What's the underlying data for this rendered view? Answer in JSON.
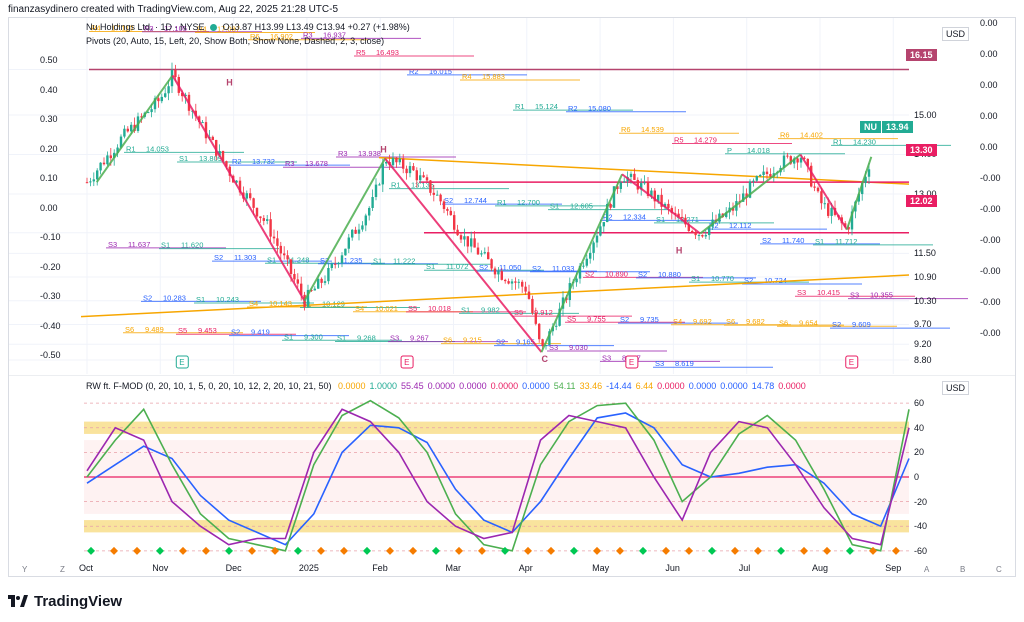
{
  "header": {
    "creator_line": "finanzasydinero created with TradingView.com, Aug 22, 2025 21:28 UTC-5"
  },
  "symbol_line": {
    "name": "Nu Holdings Ltd. · 1D · NYSE",
    "ohlc": "O13.87 H13.99 L13.49 C13.94 +0.27 (+1.98%)"
  },
  "pivots_line": "Pivots (20, Auto, 15, Left, 20, Show Both, Show None, Dashed, 2, 3, close)",
  "price_scale": {
    "unit_label": "USD",
    "ticks": [
      "16.15",
      "15.00",
      "14.00",
      "13.00",
      "12.02",
      "11.50",
      "10.90",
      "10.30",
      "9.70",
      "9.20",
      "8.80"
    ],
    "last_price": "13.94",
    "last_price_label": "NU",
    "tag_1330": "13.30",
    "tag_1615": "16.15",
    "tag_1202": "12.02"
  },
  "left_scale": [
    "0.50",
    "0.40",
    "0.30",
    "0.20",
    "0.10",
    "0.00",
    "-0.10",
    "-0.20",
    "-0.30",
    "-0.40",
    "-0.50"
  ],
  "far_right_scale": [
    "0.00",
    "0.00",
    "0.00",
    "0.00",
    "0.00",
    "-0.00",
    "-0.00",
    "-0.00",
    "-0.00",
    "-0.00",
    "-0.00"
  ],
  "x_axis": {
    "months": [
      "Oct",
      "Nov",
      "Dec",
      "2025",
      "Feb",
      "Mar",
      "Apr",
      "May",
      "Jun",
      "Jul",
      "Aug",
      "Sep"
    ]
  },
  "pattern_labels": [
    "H",
    "H",
    "C",
    "H"
  ],
  "event_markers": [
    "E",
    "E",
    "E",
    "E"
  ],
  "oscillator": {
    "legend_title": "RW ft. F-MOD (0, 20, 10, 1, 5, 0, 20, 10, 12, 2, 20, 10, 21, 50)",
    "legend_values": [
      {
        "v": "0.0000",
        "color": "#f7a600"
      },
      {
        "v": "1.0000",
        "color": "#22ab94"
      },
      {
        "v": "55.45",
        "color": "#9c27b0"
      },
      {
        "v": "0.0000",
        "color": "#9c27b0"
      },
      {
        "v": "0.0000",
        "color": "#9c27b0"
      },
      {
        "v": "0.0000",
        "color": "#e91e63"
      },
      {
        "v": "0.0000",
        "color": "#2962ff"
      },
      {
        "v": "54.11",
        "color": "#4caf50"
      },
      {
        "v": "33.46",
        "color": "#f7a600"
      },
      {
        "v": "-14.44",
        "color": "#2962ff"
      },
      {
        "v": "6.44",
        "color": "#f7a600"
      },
      {
        "v": "0.0000",
        "color": "#e91e63"
      },
      {
        "v": "0.0000",
        "color": "#2962ff"
      },
      {
        "v": "0.0000",
        "color": "#2962ff"
      },
      {
        "v": "14.78",
        "color": "#2962ff"
      },
      {
        "v": "0.0000",
        "color": "#e91e63"
      }
    ],
    "unit_label": "USD",
    "ticks": [
      "60",
      "40",
      "20",
      "0",
      "-20",
      "-40",
      "-60"
    ]
  },
  "pivot_levels": [
    {
      "label": "R4",
      "value": "17.110",
      "color": "#f7a600"
    },
    {
      "label": "R3",
      "value": "17.105",
      "color": "#9c27b0"
    },
    {
      "label": "R4",
      "value": "17.087",
      "color": "#f7a600"
    },
    {
      "label": "R6",
      "value": "16.902",
      "color": "#f7a600"
    },
    {
      "label": "R3",
      "value": "16.937",
      "color": "#9c27b0"
    },
    {
      "label": "R5",
      "value": "16.493",
      "color": "#e91e63"
    },
    {
      "label": "R2",
      "value": "16.015",
      "color": "#2962ff"
    },
    {
      "label": "R4",
      "value": "15.883",
      "color": "#f7a600"
    },
    {
      "label": "R1",
      "value": "15.124",
      "color": "#22ab94"
    },
    {
      "label": "R2",
      "value": "15.080",
      "color": "#2962ff"
    },
    {
      "label": "R6",
      "value": "14.539",
      "color": "#f7a600"
    },
    {
      "label": "R5",
      "value": "14.279",
      "color": "#e91e63"
    },
    {
      "label": "P",
      "value": "14.018",
      "color": "#22ab94"
    },
    {
      "label": "R6",
      "value": "14.402",
      "color": "#f7a600"
    },
    {
      "label": "R1",
      "value": "14.230",
      "color": "#22ab94"
    },
    {
      "label": "R1",
      "value": "14.053",
      "color": "#22ab94"
    },
    {
      "label": "S1",
      "value": "13.809",
      "color": "#22ab94"
    },
    {
      "label": "R2",
      "value": "13.732",
      "color": "#2962ff"
    },
    {
      "label": "R3",
      "value": "13.678",
      "color": "#9c27b0"
    },
    {
      "label": "R3",
      "value": "13.938",
      "color": "#9c27b0"
    },
    {
      "label": "R1",
      "value": "13.135",
      "color": "#22ab94"
    },
    {
      "label": "S2",
      "value": "12.744",
      "color": "#2962ff"
    },
    {
      "label": "R1",
      "value": "12.700",
      "color": "#22ab94"
    },
    {
      "label": "S1",
      "value": "12.605",
      "color": "#22ab94"
    },
    {
      "label": "R2",
      "value": "12.334",
      "color": "#2962ff"
    },
    {
      "label": "S1",
      "value": "12.271",
      "color": "#22ab94"
    },
    {
      "label": "R2",
      "value": "12.112",
      "color": "#2962ff"
    },
    {
      "label": "S2",
      "value": "11.740",
      "color": "#2962ff"
    },
    {
      "label": "S1",
      "value": "11.712",
      "color": "#22ab94"
    },
    {
      "label": "S3",
      "value": "11.637",
      "color": "#9c27b0"
    },
    {
      "label": "S1",
      "value": "11.620",
      "color": "#22ab94"
    },
    {
      "label": "S2",
      "value": "11.303",
      "color": "#2962ff"
    },
    {
      "label": "S1",
      "value": "11.248",
      "color": "#22ab94"
    },
    {
      "label": "S2",
      "value": "11.235",
      "color": "#2962ff"
    },
    {
      "label": "S1",
      "value": "11.222",
      "color": "#22ab94"
    },
    {
      "label": "S1",
      "value": "11.072",
      "color": "#22ab94"
    },
    {
      "label": "S2",
      "value": "11.050",
      "color": "#2962ff"
    },
    {
      "label": "S2",
      "value": "11.033",
      "color": "#2962ff"
    },
    {
      "label": "S2",
      "value": "10.890",
      "color": "#e91e63"
    },
    {
      "label": "S2",
      "value": "10.880",
      "color": "#2962ff"
    },
    {
      "label": "S1",
      "value": "10.770",
      "color": "#22ab94"
    },
    {
      "label": "S2",
      "value": "10.724",
      "color": "#2962ff"
    },
    {
      "label": "S3",
      "value": "10.415",
      "color": "#e91e63"
    },
    {
      "label": "S3",
      "value": "10.355",
      "color": "#9c27b0"
    },
    {
      "label": "S2",
      "value": "10.283",
      "color": "#2962ff"
    },
    {
      "label": "S1",
      "value": "10.243",
      "color": "#22ab94"
    },
    {
      "label": "S4",
      "value": "10.143",
      "color": "#f7a600"
    },
    {
      "label": "S1",
      "value": "10.129",
      "color": "#22ab94"
    },
    {
      "label": "S4",
      "value": "10.021",
      "color": "#f7a600"
    },
    {
      "label": "S5",
      "value": "10.018",
      "color": "#e91e63"
    },
    {
      "label": "S1",
      "value": "9.982",
      "color": "#22ab94"
    },
    {
      "label": "S5",
      "value": "9.912",
      "color": "#e91e63"
    },
    {
      "label": "S5",
      "value": "9.755",
      "color": "#e91e63"
    },
    {
      "label": "S2",
      "value": "9.735",
      "color": "#2962ff"
    },
    {
      "label": "S4",
      "value": "9.692",
      "color": "#f7a600"
    },
    {
      "label": "S6",
      "value": "9.682",
      "color": "#f7a600"
    },
    {
      "label": "S6",
      "value": "9.654",
      "color": "#f7a600"
    },
    {
      "label": "S2",
      "value": "9.609",
      "color": "#2962ff"
    },
    {
      "label": "S6",
      "value": "9.489",
      "color": "#f7a600"
    },
    {
      "label": "S5",
      "value": "9.453",
      "color": "#e91e63"
    },
    {
      "label": "S2",
      "value": "9.419",
      "color": "#2962ff"
    },
    {
      "label": "S1",
      "value": "9.300",
      "color": "#22ab94"
    },
    {
      "label": "S1",
      "value": "9.268",
      "color": "#22ab94"
    },
    {
      "label": "S3",
      "value": "9.267",
      "color": "#9c27b0"
    },
    {
      "label": "S6",
      "value": "9.215",
      "color": "#f7a600"
    },
    {
      "label": "S2",
      "value": "9.165",
      "color": "#2962ff"
    },
    {
      "label": "S3",
      "value": "9.030",
      "color": "#9c27b0"
    },
    {
      "label": "S3",
      "value": "8.767",
      "color": "#9c27b0"
    },
    {
      "label": "S3",
      "value": "8.619",
      "color": "#2962ff"
    }
  ],
  "chart_data": [
    {
      "type": "line",
      "title": "",
      "xlabel": "",
      "ylabel": "",
      "x": [
        "Oct",
        "Nov",
        "Dec",
        "2025",
        "Feb",
        "Mar",
        "Apr",
        "May",
        "Jun",
        "Jul",
        "Aug",
        "Sep"
      ],
      "ylim": [
        8.7,
        17.2
      ],
      "grid": true,
      "series": [
        {
          "name": "",
          "x": [
            "Oct 1",
            "Oct 15",
            "Nov 1",
            "Nov 6",
            "Nov 20",
            "Dec 1",
            "Dec 15",
            "Dec 30",
            "Jan 10",
            "Jan 28",
            "Feb 3",
            "Feb 14",
            "Feb 25",
            "Mar 5",
            "Mar 20",
            "Apr 1",
            "Apr 7",
            "Apr 20",
            "May 1",
            "May 10",
            "May 20",
            "Jun 2",
            "Jun 12",
            "Jun 25",
            "Jul 3",
            "Jul 15",
            "Jul 23",
            "Aug 1",
            "Aug 12",
            "Aug 22"
          ],
          "values": [
            13.3,
            14.4,
            15.4,
            16.0,
            14.5,
            13.4,
            12.2,
            10.3,
            11.0,
            12.8,
            13.9,
            13.6,
            12.9,
            11.9,
            11.0,
            10.6,
            9.0,
            10.8,
            12.2,
            13.5,
            13.1,
            12.4,
            12.0,
            12.6,
            13.2,
            13.8,
            14.0,
            12.8,
            12.1,
            13.94
          ]
        }
      ],
      "annotations": [
        "16.15",
        "13.30",
        "12.02",
        "NU 13.94",
        "H",
        "H",
        "C",
        "H"
      ]
    },
    {
      "type": "line",
      "title": "",
      "ylim": [
        -65,
        65
      ],
      "series": [
        {
          "name": "",
          "color": "#2962ff",
          "values": [
            -5,
            10,
            25,
            15,
            -15,
            -35,
            -45,
            -55,
            -30,
            20,
            42,
            40,
            28,
            -10,
            -35,
            -45,
            -20,
            15,
            48,
            52,
            40,
            10,
            0,
            3,
            8,
            10,
            -5,
            -30,
            -40,
            15
          ]
        },
        {
          "name": "",
          "color": "#4caf50",
          "values": [
            0,
            30,
            55,
            10,
            -30,
            -50,
            -55,
            -60,
            10,
            50,
            62,
            48,
            20,
            -30,
            -55,
            -60,
            10,
            45,
            58,
            60,
            30,
            -20,
            0,
            35,
            50,
            30,
            -10,
            -55,
            -60,
            55
          ]
        },
        {
          "name": "",
          "color": "#9c27b0",
          "values": [
            5,
            40,
            30,
            -20,
            -40,
            -55,
            -50,
            -50,
            20,
            55,
            45,
            20,
            -20,
            -40,
            -50,
            -45,
            30,
            50,
            45,
            40,
            0,
            -35,
            20,
            45,
            40,
            10,
            -25,
            -50,
            -55,
            40
          ]
        }
      ]
    }
  ]
}
